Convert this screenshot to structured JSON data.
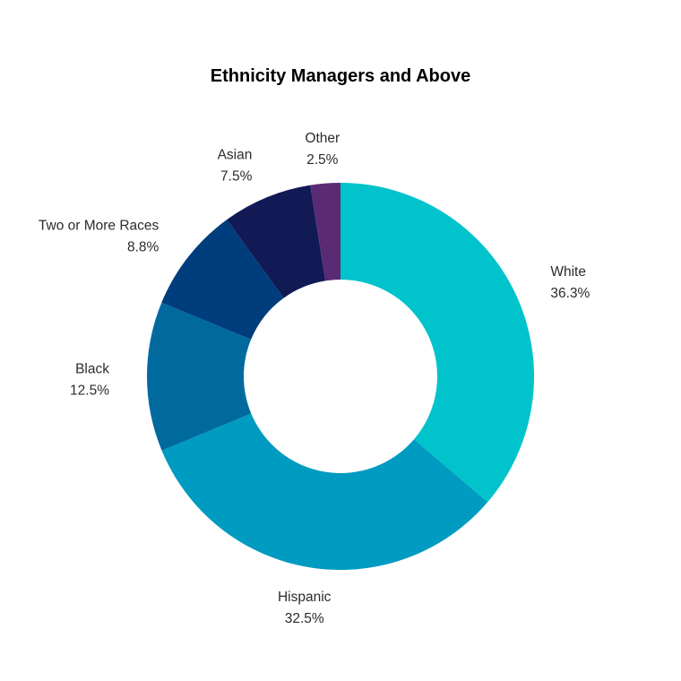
{
  "chart_data": {
    "type": "pie",
    "variant": "donut",
    "title": "Ethnicity Managers and Above",
    "slices": [
      {
        "label": "White",
        "value": 36.3,
        "value_label": "36.3%",
        "color": "#00C3CB"
      },
      {
        "label": "Hispanic",
        "value": 32.5,
        "value_label": "32.5%",
        "color": "#009BC0"
      },
      {
        "label": "Black",
        "value": 12.5,
        "value_label": "12.5%",
        "color": "#006A9F"
      },
      {
        "label": "Two or More Races",
        "value": 8.8,
        "value_label": "8.8%",
        "color": "#003D7D"
      },
      {
        "label": "Asian",
        "value": 7.5,
        "value_label": "7.5%",
        "color": "#121A56"
      },
      {
        "label": "Other",
        "value": 2.5,
        "value_label": "2.5%",
        "color": "#5B2A74"
      }
    ],
    "legend": "none"
  }
}
